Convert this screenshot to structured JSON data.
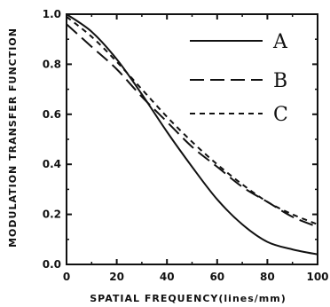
{
  "chart_data": {
    "type": "line",
    "xlabel": "SPATIAL FREQUENCY(lines/mm)",
    "ylabel": "MODULATION TRANSFER FUNCTION",
    "xlim": [
      0,
      100
    ],
    "ylim": [
      0,
      1.0
    ],
    "x_ticks": [
      "0",
      "20",
      "40",
      "60",
      "80",
      "100"
    ],
    "y_ticks": [
      "0.0",
      "0.2",
      "0.4",
      "0.6",
      "0.8",
      "1.0"
    ],
    "x_tick_values": [
      0,
      20,
      40,
      60,
      80,
      100
    ],
    "y_tick_values": [
      0,
      0.2,
      0.4,
      0.6,
      0.8,
      1.0
    ],
    "grid": false,
    "legend_position": "top-right",
    "series": [
      {
        "name": "A",
        "style": "solid",
        "x": [
          0,
          10,
          20,
          30,
          40,
          50,
          60,
          70,
          80,
          90,
          100
        ],
        "y": [
          1.0,
          0.93,
          0.82,
          0.68,
          0.53,
          0.39,
          0.26,
          0.16,
          0.09,
          0.06,
          0.04
        ]
      },
      {
        "name": "B",
        "style": "long-dash",
        "x": [
          0,
          10,
          20,
          30,
          40,
          50,
          60,
          70,
          80,
          90,
          100
        ],
        "y": [
          0.96,
          0.87,
          0.78,
          0.67,
          0.57,
          0.47,
          0.39,
          0.31,
          0.25,
          0.19,
          0.15
        ]
      },
      {
        "name": "C",
        "style": "short-dash",
        "x": [
          0,
          10,
          20,
          30,
          40,
          50,
          60,
          70,
          80,
          90,
          100
        ],
        "y": [
          0.99,
          0.91,
          0.81,
          0.7,
          0.59,
          0.49,
          0.4,
          0.32,
          0.25,
          0.2,
          0.16
        ]
      }
    ]
  }
}
